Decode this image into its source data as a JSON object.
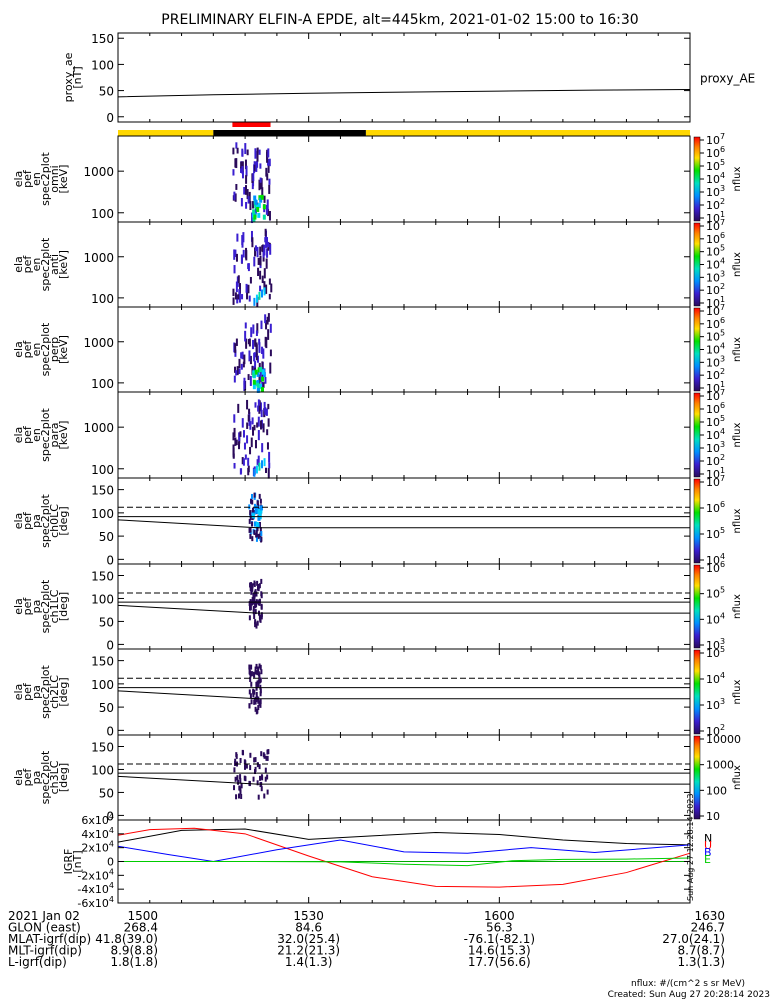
{
  "title": "PRELIMINARY ELFIN-A EPDE, alt=445km, 2021-01-02 15:00 to 16:30",
  "chart_data": [
    {
      "type": "line",
      "name": "proxy_ae",
      "ylabel": [
        "proxy_ae",
        "[nT]"
      ],
      "yticks": [
        "0",
        "50",
        "100",
        "150"
      ],
      "ylim": [
        -10,
        160
      ],
      "series": [
        {
          "name": "proxy_AE",
          "t": [
            0,
            15,
            30,
            45,
            60,
            75,
            90
          ],
          "values": [
            38,
            42,
            45,
            47,
            49,
            51,
            52
          ]
        }
      ],
      "legend": "proxy_AE"
    },
    {
      "type": "heatmap",
      "name": "ela_pef_en_spec2plot_omni",
      "ylabel": [
        "ela",
        "pef",
        "en",
        "spec2plot",
        "omni",
        "[keV]"
      ],
      "yticks": [
        "100",
        "1000"
      ],
      "ylog": true,
      "ylim": [
        60,
        7000
      ],
      "cbar_label": "nflux",
      "cbar_ticks": [
        "10^1",
        "10^2",
        "10^3",
        "10^4",
        "10^5",
        "10^6",
        "10^7"
      ],
      "active_t": [
        18,
        24
      ]
    },
    {
      "type": "heatmap",
      "name": "ela_pef_en_spec2plot_anti",
      "ylabel": [
        "ela",
        "pef",
        "en",
        "spec2plot",
        "anti",
        "[keV]"
      ],
      "yticks": [
        "100",
        "1000"
      ],
      "ylog": true,
      "ylim": [
        60,
        7000
      ],
      "cbar_label": "nflux",
      "cbar_ticks": [
        "10^1",
        "10^2",
        "10^3",
        "10^4",
        "10^5",
        "10^6",
        "10^7"
      ],
      "active_t": [
        18,
        24
      ]
    },
    {
      "type": "heatmap",
      "name": "ela_pef_en_spec2plot_perp",
      "ylabel": [
        "ela",
        "pef",
        "en",
        "spec2plot",
        "perp",
        "[keV]"
      ],
      "yticks": [
        "100",
        "1000"
      ],
      "ylog": true,
      "ylim": [
        60,
        7000
      ],
      "cbar_label": "nflux",
      "cbar_ticks": [
        "10^1",
        "10^2",
        "10^3",
        "10^4",
        "10^5",
        "10^6",
        "10^7"
      ],
      "active_t": [
        18,
        24
      ]
    },
    {
      "type": "heatmap",
      "name": "ela_pef_en_spec2plot_para",
      "ylabel": [
        "ela",
        "pef",
        "en",
        "spec2plot",
        "para",
        "[keV]"
      ],
      "yticks": [
        "100",
        "1000"
      ],
      "ylog": true,
      "ylim": [
        60,
        7000
      ],
      "cbar_label": "nflux",
      "cbar_ticks": [
        "10^1",
        "10^2",
        "10^3",
        "10^4",
        "10^5",
        "10^6",
        "10^7"
      ],
      "active_t": [
        18,
        24
      ]
    },
    {
      "type": "heatmap",
      "name": "ela_pef_pa_spec2plot_ch0LC",
      "ylabel": [
        "ela",
        "pef",
        "pa",
        "spec2plot",
        "ch0LC",
        "[deg]"
      ],
      "yticks": [
        "0",
        "50",
        "100",
        "150"
      ],
      "ylim": [
        -10,
        175
      ],
      "cbar_label": "nflux",
      "cbar_ticks": [
        "10^4",
        "10^5",
        "10^6",
        "10^7"
      ],
      "lines": {
        "solid": [
          [
            0,
            85,
            22,
            68,
            90,
            68
          ],
          [
            0,
            92,
            90,
            92
          ]
        ],
        "dashed": [
          112
        ]
      }
    },
    {
      "type": "heatmap",
      "name": "ela_pef_pa_spec2plot_ch1LC",
      "ylabel": [
        "ela",
        "pef",
        "pa",
        "spec2plot",
        "ch1LC",
        "[deg]"
      ],
      "yticks": [
        "0",
        "50",
        "100",
        "150"
      ],
      "ylim": [
        -10,
        175
      ],
      "cbar_label": "nflux",
      "cbar_ticks": [
        "10^3",
        "10^4",
        "10^5",
        "10^6"
      ],
      "lines": {
        "solid": [
          [
            0,
            85,
            22,
            68,
            90,
            68
          ],
          [
            0,
            92,
            90,
            92
          ]
        ],
        "dashed": [
          112
        ]
      }
    },
    {
      "type": "heatmap",
      "name": "ela_pef_pa_spec2plot_ch2LC",
      "ylabel": [
        "ela",
        "pef",
        "pa",
        "spec2plot",
        "ch2LC",
        "[deg]"
      ],
      "yticks": [
        "0",
        "50",
        "100",
        "150"
      ],
      "ylim": [
        -10,
        175
      ],
      "cbar_label": "nflux",
      "cbar_ticks": [
        "10^2",
        "10^3",
        "10^4",
        "10^5"
      ],
      "lines": {
        "solid": [
          [
            0,
            85,
            22,
            68,
            90,
            68
          ],
          [
            0,
            92,
            90,
            92
          ]
        ],
        "dashed": [
          112
        ]
      }
    },
    {
      "type": "heatmap",
      "name": "ela_pef_pa_spec2plot_ch3LC",
      "ylabel": [
        "ela",
        "pef",
        "pa",
        "spec2plot",
        "ch3LC",
        "[deg]"
      ],
      "yticks": [
        "0",
        "50",
        "100",
        "150"
      ],
      "ylim": [
        -10,
        175
      ],
      "cbar_label": "nflux",
      "cbar_ticks": [
        "10",
        "100",
        "1000",
        "10000"
      ],
      "lines": {
        "solid": [
          [
            0,
            85,
            22,
            68,
            90,
            68
          ],
          [
            0,
            92,
            90,
            92
          ]
        ],
        "dashed": [
          112
        ]
      }
    },
    {
      "type": "line",
      "name": "IGRF",
      "ylabel": [
        "IGRF",
        "[nT]"
      ],
      "yticks": [
        "-6x10^4",
        "-4x10^4",
        "-2x10^4",
        "0",
        "2x10^4",
        "4x10^4",
        "6x10^4"
      ],
      "ylim": [
        -60000,
        60000
      ],
      "series": [
        {
          "name": "N",
          "color": "#000000",
          "t": [
            0,
            10,
            20,
            30,
            40,
            50,
            60,
            70,
            80,
            90
          ],
          "values": [
            28000,
            45000,
            47000,
            32000,
            37000,
            42000,
            39000,
            31000,
            26000,
            24000
          ]
        },
        {
          "name": "U",
          "color": "#ff0000",
          "t": [
            0,
            5,
            12,
            20,
            30,
            40,
            50,
            60,
            70,
            80,
            90
          ],
          "values": [
            38000,
            46000,
            48000,
            40000,
            8000,
            -22000,
            -36000,
            -37000,
            -33000,
            -16000,
            12000
          ]
        },
        {
          "name": "B",
          "color": "#0000ff",
          "t": [
            0,
            8,
            15,
            25,
            35,
            45,
            55,
            65,
            75,
            90
          ],
          "values": [
            22000,
            10000,
            0,
            17000,
            31000,
            14000,
            12000,
            20000,
            13000,
            24000
          ]
        },
        {
          "name": "E",
          "color": "#00cc00",
          "t": [
            0,
            20,
            35,
            45,
            55,
            62,
            70,
            80,
            90
          ],
          "values": [
            0,
            0,
            -500,
            -4000,
            -6000,
            1000,
            3000,
            3500,
            5000
          ]
        }
      ],
      "legend": [
        "N",
        "U",
        "B",
        "E"
      ],
      "side_label": "Sun Aug 27 12:28:14 2023"
    }
  ],
  "xaxis": {
    "ticks": [
      0,
      30,
      60,
      90
    ],
    "rows": [
      {
        "label": "2021 Jan 02",
        "values": [
          "1500",
          "1530",
          "1600",
          "1630"
        ]
      },
      {
        "label": "GLON (east)",
        "values": [
          "268.4",
          "84.6",
          "56.3",
          "246.7"
        ]
      },
      {
        "label": "MLAT-igrf(dip)",
        "values": [
          "41.8(39.0)",
          "32.0(25.4)",
          "-76.1(-82.1)",
          "27.0(24.1)"
        ]
      },
      {
        "label": "MLT-igrf(dip)",
        "values": [
          "8.9(8.8)",
          "21.2(21.3)",
          "14.6(15.3)",
          "8.7(8.7)"
        ]
      },
      {
        "label": "L-igrf(dip)",
        "values": [
          "1.8(1.8)",
          "1.4(1.3)",
          "17.7(56.6)",
          "1.3(1.3)"
        ]
      }
    ]
  },
  "status_bar": {
    "yellow": [
      [
        0,
        15
      ],
      [
        39,
        90
      ]
    ],
    "black": [
      [
        15,
        39
      ]
    ],
    "red": [
      [
        18,
        24
      ]
    ]
  },
  "footer": [
    "nflux: #/(cm^2 s sr MeV)",
    "Created: Sun Aug 27 20:28:14 2023"
  ],
  "colors": {
    "yellow": "#ffd700",
    "red": "#ff0000",
    "black": "#000000"
  }
}
